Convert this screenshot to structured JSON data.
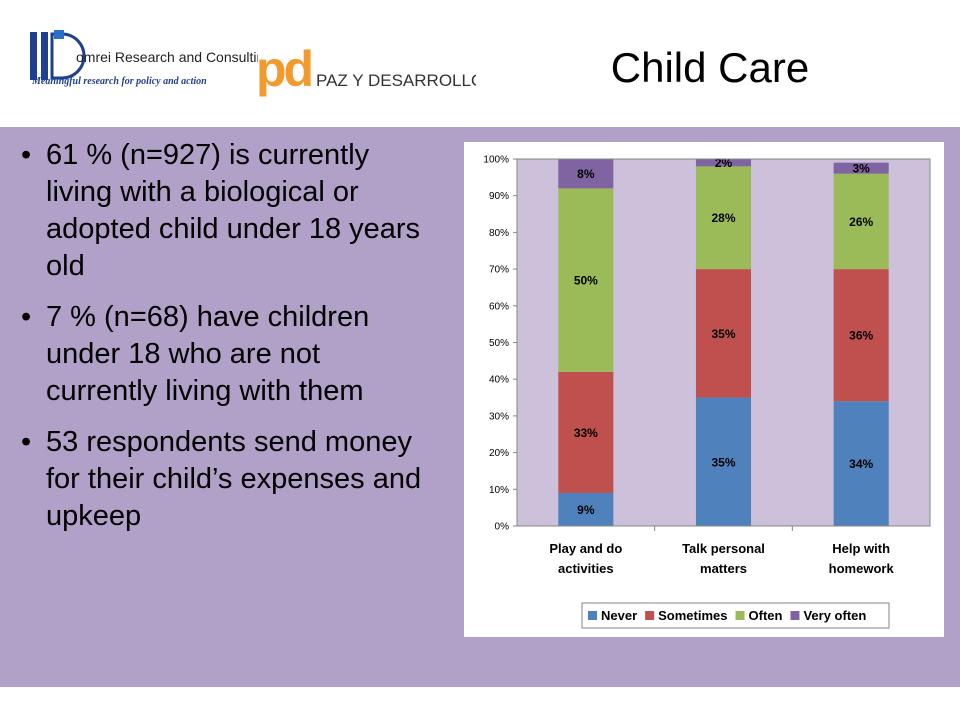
{
  "header": {
    "title": "Child Care",
    "logo1": {
      "name": "omrei Research and Consulting",
      "tagline": "Meaningful research for policy and action"
    },
    "logo2": {
      "mark": "pd",
      "name": "PAZ Y DESARROLLO"
    }
  },
  "bullets": [
    "61 % (n=927) is currently living with a biological or adopted child under 18 years old",
    "7 % (n=68) have children under 18 who are not currently living with them",
    "53 respondents send money for their child’s expenses and upkeep"
  ],
  "colors": {
    "background": "#b1a0c7",
    "plot_area": "#ccc0da",
    "never": "#4f81bd",
    "sometimes": "#c0504d",
    "often": "#9bbb59",
    "very_often": "#8064a2"
  },
  "chart_data": {
    "type": "bar",
    "stacked": true,
    "normalized": true,
    "categories": [
      [
        "Play and do",
        "activities"
      ],
      [
        "Talk personal",
        "matters"
      ],
      [
        "Help with",
        "homework"
      ]
    ],
    "series": [
      {
        "name": "Never",
        "values": [
          9,
          35,
          34
        ],
        "labels": [
          "9%",
          "35%",
          "34%"
        ],
        "color": "#4f81bd"
      },
      {
        "name": "Sometimes",
        "values": [
          33,
          35,
          36
        ],
        "labels": [
          "33%",
          "35%",
          "36%"
        ],
        "color": "#c0504d"
      },
      {
        "name": "Often",
        "values": [
          50,
          28,
          26
        ],
        "labels": [
          "50%",
          "28%",
          "26%"
        ],
        "color": "#9bbb59"
      },
      {
        "name": "Very often",
        "values": [
          8,
          2,
          3
        ],
        "labels": [
          "8%",
          "2%",
          "3%"
        ],
        "color": "#8064a2"
      }
    ],
    "yticks": [
      "0%",
      "10%",
      "20%",
      "30%",
      "40%",
      "50%",
      "60%",
      "70%",
      "80%",
      "90%",
      "100%"
    ],
    "ylim": [
      0,
      100
    ],
    "legend": "bottom",
    "grid": false
  }
}
